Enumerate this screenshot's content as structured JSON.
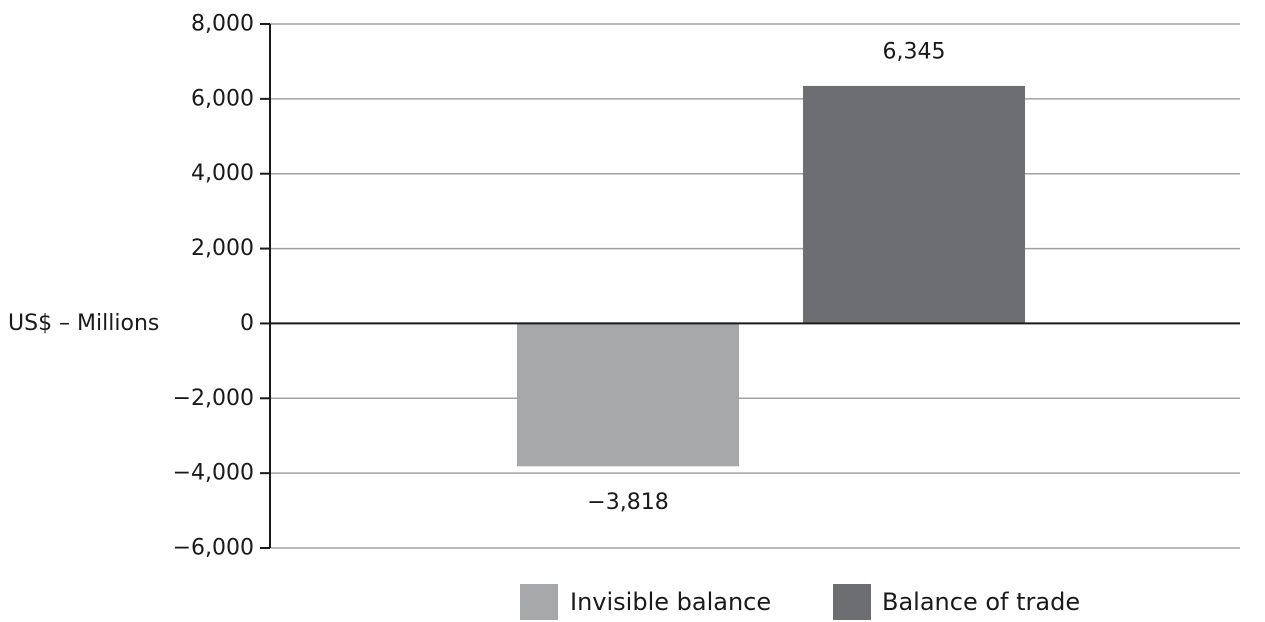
{
  "chart_data": {
    "type": "bar",
    "categories": [
      "Invisible balance",
      "Balance of trade"
    ],
    "values": [
      -3818,
      6345
    ],
    "colors": [
      "#a7a8aa",
      "#6d6e71"
    ],
    "data_labels": [
      "−3,818",
      "6,345"
    ],
    "ylabel": "US$ – Millions",
    "ylim": [
      -6000,
      8000
    ],
    "yticks": [
      8000,
      6000,
      4000,
      2000,
      0,
      -2000,
      -4000,
      -6000
    ],
    "ytick_labels": [
      "8,000",
      "6,000",
      "4,000",
      "2,000",
      "0",
      "−2,000",
      "−4,000",
      "−6,000"
    ],
    "grid": true,
    "legend": {
      "position": "bottom",
      "entries": [
        "Invisible balance",
        "Balance of trade"
      ]
    }
  }
}
